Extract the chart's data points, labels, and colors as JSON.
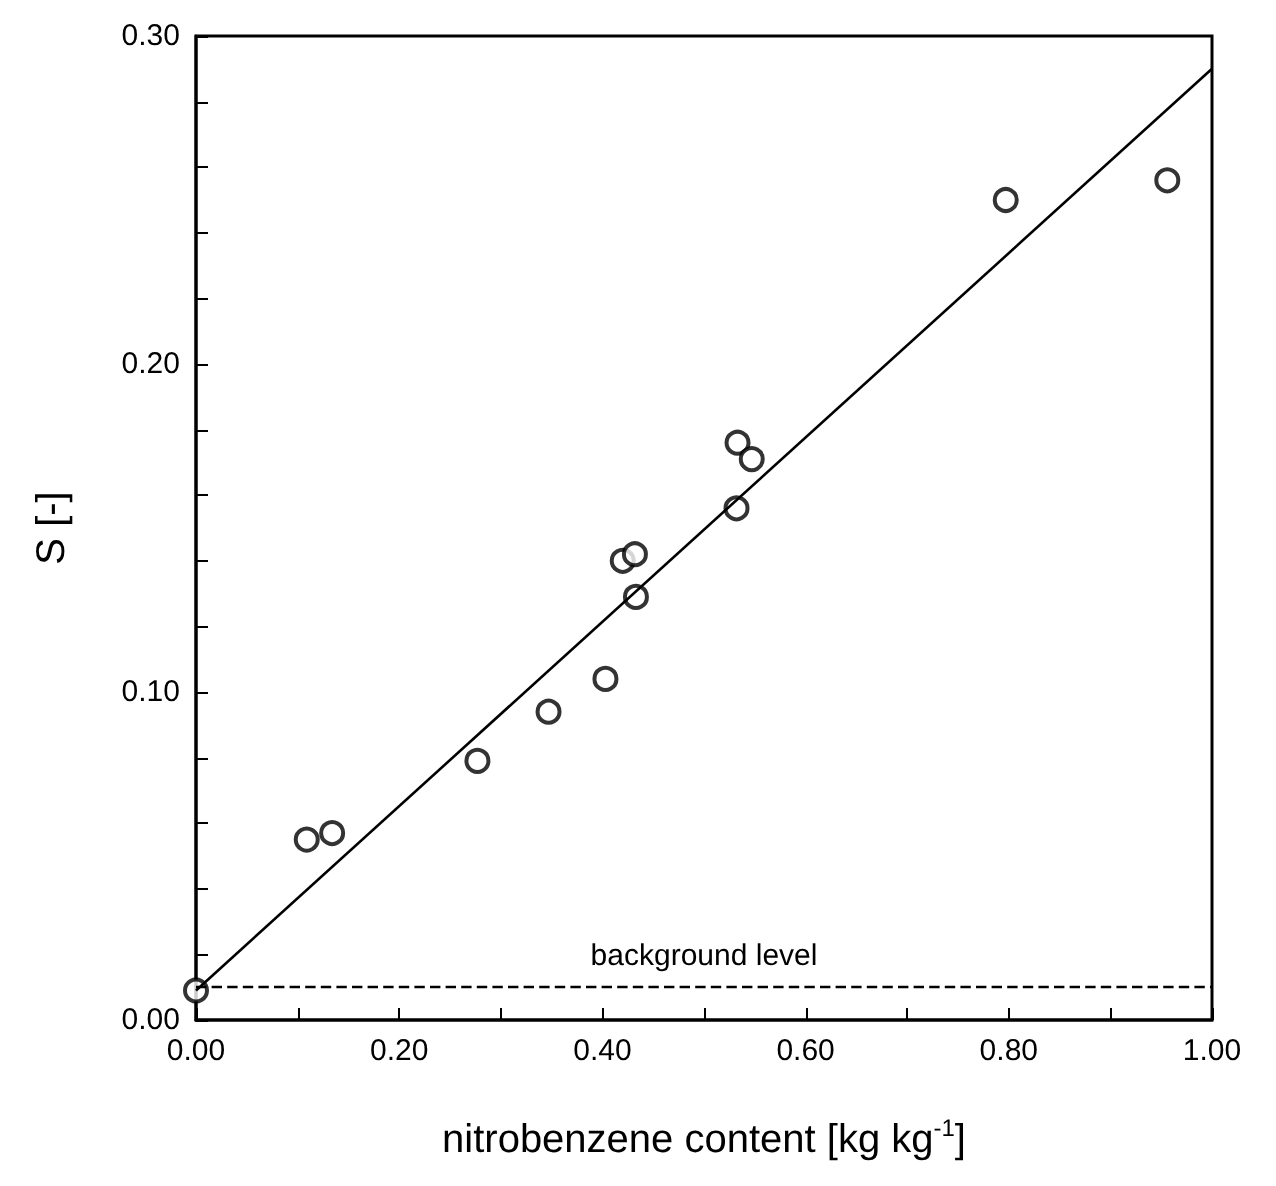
{
  "chart_data": {
    "type": "scatter",
    "xlabel": "nitrobenzene content [kg kg$^{-1}$]",
    "ylabel": "S [-]",
    "series": [
      {
        "color": "#000000",
        "marker": "circle",
        "x": [
          0,
          0.109,
          0.134,
          0.277,
          0.347,
          0.403,
          0.42,
          0.432,
          0.433,
          0.532,
          0.533,
          0.547,
          0.797,
          0.956
        ],
        "values": [
          0.009,
          0.055,
          0.057,
          0.079,
          0.094,
          0.104,
          0.14,
          0.142,
          0.129,
          0.156,
          0.176,
          0.171,
          0.25,
          0.256
        ]
      },
      {
        "type": "line",
        "color": "#000000",
        "marker": "none",
        "line_style": "solid",
        "x": [
          0,
          1
        ],
        "values": [
          0.009,
          0.29
        ]
      }
    ],
    "xlim": [
      0,
      1
    ],
    "ylim": [
      0,
      0.3
    ],
    "xticks": [
      {
        "value": 0,
        "label": "0.00"
      },
      {
        "value": 0.1,
        "label": null
      },
      {
        "value": 0.2,
        "label": "0.20"
      },
      {
        "value": 0.3,
        "label": null
      },
      {
        "value": 0.4,
        "label": "0.40"
      },
      {
        "value": 0.5,
        "label": null
      },
      {
        "value": 0.6,
        "label": "0.60"
      },
      {
        "value": 0.7,
        "label": null
      },
      {
        "value": 0.8,
        "label": "0.80"
      },
      {
        "value": 0.9,
        "label": null
      },
      {
        "value": 1,
        "label": "1.00"
      }
    ],
    "yticks": [
      {
        "value": 0,
        "label": "0.00"
      },
      {
        "value": 0.02,
        "label": null
      },
      {
        "value": 0.04,
        "label": null
      },
      {
        "value": 0.06,
        "label": null
      },
      {
        "value": 0.08,
        "label": null
      },
      {
        "value": 0.1,
        "label": "0.10"
      },
      {
        "value": 0.12,
        "label": null
      },
      {
        "value": 0.14,
        "label": null
      },
      {
        "value": 0.16,
        "label": null
      },
      {
        "value": 0.18,
        "label": null
      },
      {
        "value": 0.2,
        "label": "0.20"
      },
      {
        "value": 0.22,
        "label": null
      },
      {
        "value": 0.24,
        "label": null
      },
      {
        "value": 0.26,
        "label": null
      },
      {
        "value": 0.28,
        "label": null
      },
      {
        "value": 0.3,
        "label": "0.30"
      }
    ],
    "ref_lines": [
      {
        "axis": "y",
        "value": 0.01,
        "label": "background level",
        "line_style": "dashed",
        "color": "#000000"
      }
    ],
    "grid": false
  }
}
